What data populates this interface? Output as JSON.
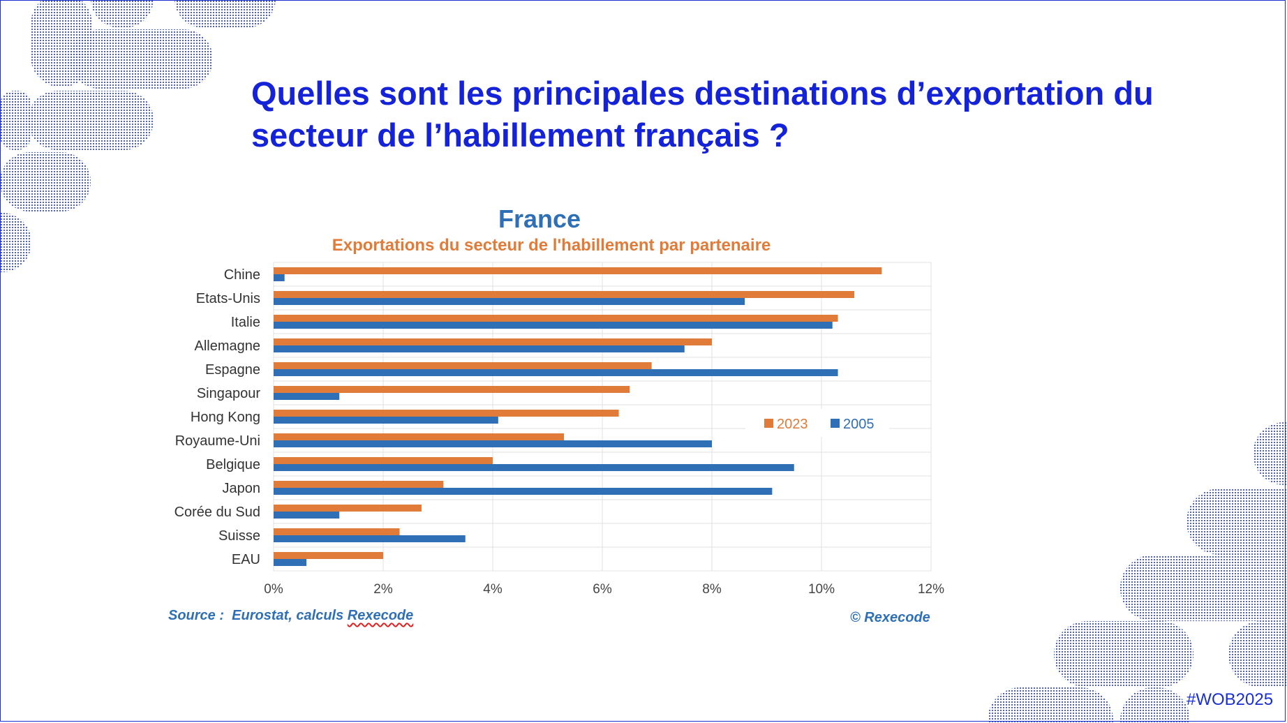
{
  "slide": {
    "title_line1": "Quelles sont les principales destinations d’exportation du",
    "title_line2": "secteur de l’habillement français ?",
    "source_label": "Source :",
    "source_text": "Eurostat, calculs",
    "source_org": "Rexecode",
    "copyright": "© Rexecode",
    "hashtag": "#WOB2025"
  },
  "colors": {
    "title": "#1523d8",
    "series_2023": "#e07b39",
    "series_2005": "#2e6fb6",
    "decor": "#1a2fd1"
  },
  "chart_data": {
    "type": "bar",
    "orientation": "horizontal",
    "title": "France",
    "subtitle": "Exportations du secteur de l'habillement par partenaire",
    "categories": [
      "Chine",
      "Etats-Unis",
      "Italie",
      "Allemagne",
      "Espagne",
      "Singapour",
      "Hong Kong",
      "Royaume-Uni",
      "Belgique",
      "Japon",
      "Corée du Sud",
      "Suisse",
      "EAU"
    ],
    "series": [
      {
        "name": "2023",
        "values": [
          11.1,
          10.6,
          10.3,
          8.0,
          6.9,
          6.5,
          6.3,
          5.3,
          4.0,
          3.1,
          2.7,
          2.3,
          2.0
        ]
      },
      {
        "name": "2005",
        "values": [
          0.2,
          8.6,
          10.2,
          7.5,
          10.3,
          1.2,
          4.1,
          8.0,
          9.5,
          9.1,
          1.2,
          3.5,
          0.6
        ]
      }
    ],
    "xlim": [
      0,
      12
    ],
    "xticks": [
      "0%",
      "2%",
      "4%",
      "6%",
      "8%",
      "10%",
      "12%"
    ],
    "xlabel": "",
    "ylabel": "",
    "legend": [
      "2023",
      "2005"
    ],
    "legend_position": "right-middle",
    "grid": true
  }
}
